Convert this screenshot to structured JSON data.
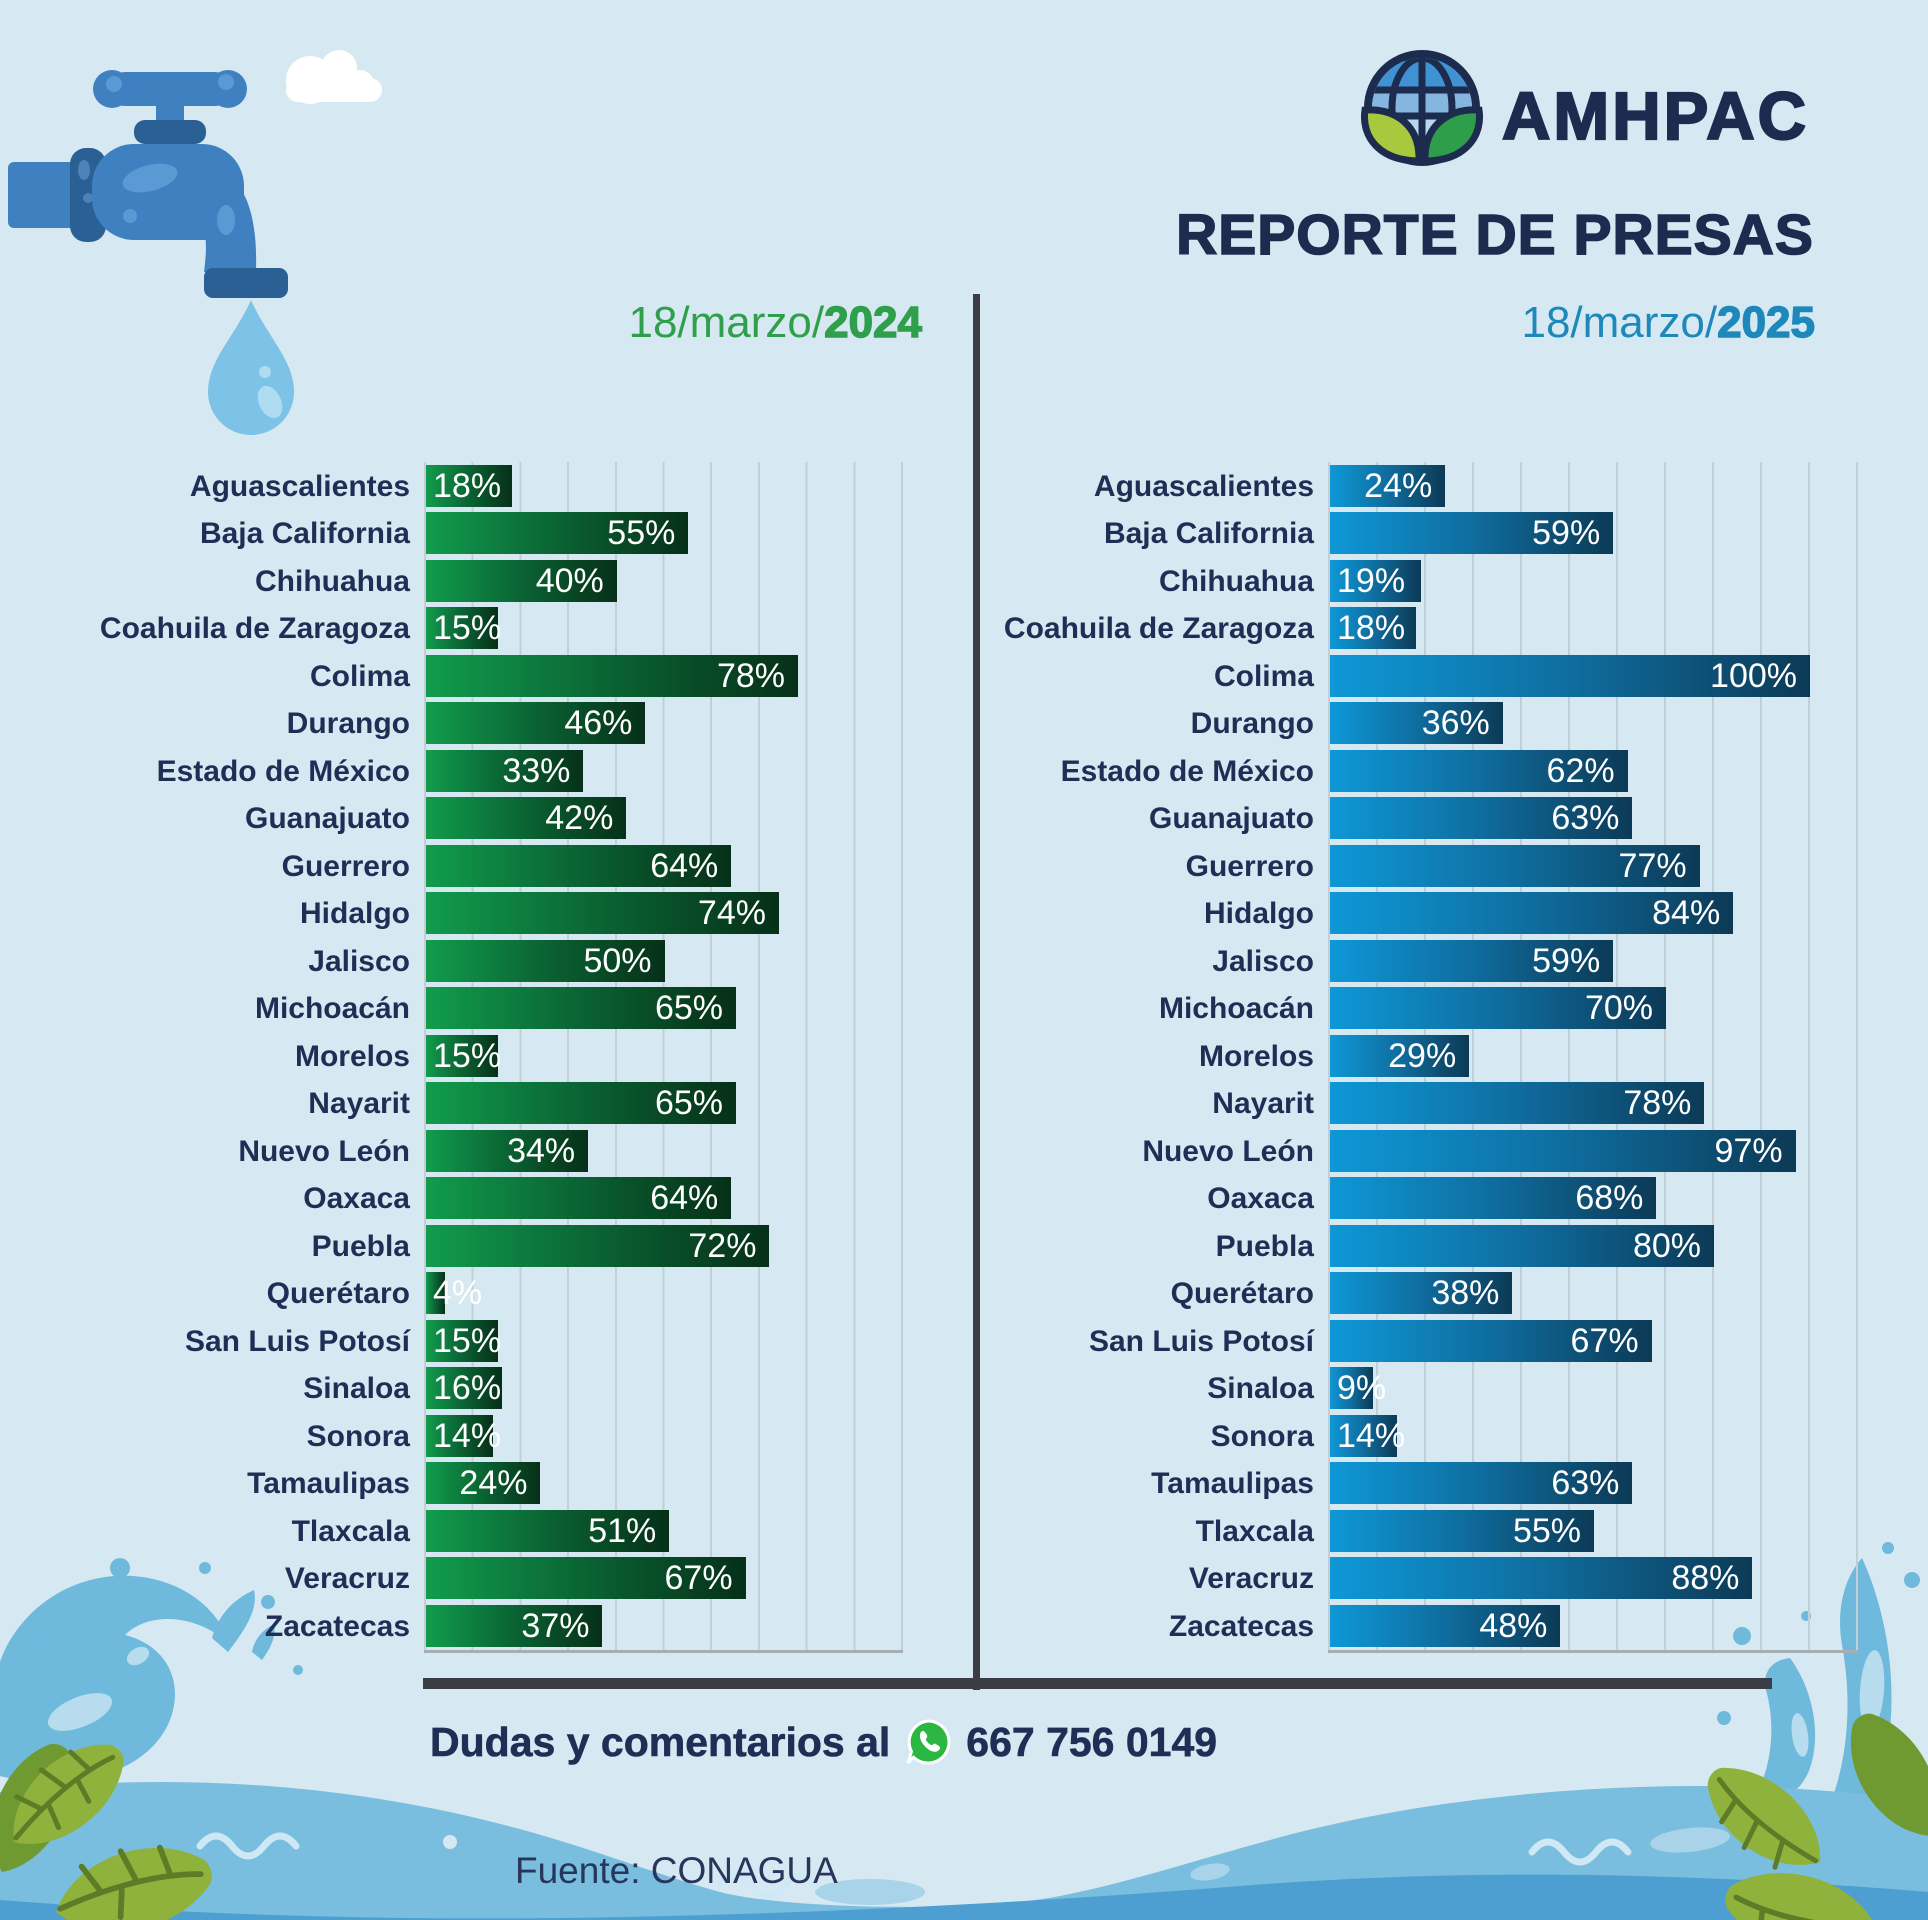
{
  "title": "REPORTE DE PRESAS",
  "logo": {
    "text": "AMHPAC"
  },
  "chart_data": {
    "type": "bar",
    "orientation": "horizontal",
    "title": "REPORTE DE PRESAS",
    "categories": [
      "Aguascalientes",
      "Baja California",
      "Chihuahua",
      "Coahuila de Zaragoza",
      "Colima",
      "Durango",
      "Estado de México",
      "Guanajuato",
      "Guerrero",
      "Hidalgo",
      "Jalisco",
      "Michoacán",
      "Morelos",
      "Nayarit",
      "Nuevo León",
      "Oaxaca",
      "Puebla",
      "Querétaro",
      "San Luis Potosí",
      "Sinaloa",
      "Sonora",
      "Tamaulipas",
      "Tlaxcala",
      "Veracruz",
      "Zacatecas"
    ],
    "series": [
      {
        "name": "18/marzo/2024",
        "date_prefix": "18/marzo/",
        "year": "2024",
        "values": [
          18,
          55,
          40,
          15,
          78,
          46,
          33,
          42,
          64,
          74,
          50,
          65,
          15,
          65,
          34,
          64,
          72,
          4,
          15,
          16,
          14,
          24,
          51,
          67,
          37
        ],
        "bar_gradient": [
          "#119c4d",
          "#0a6333",
          "#063018"
        ],
        "date_color": "#2f9f4b"
      },
      {
        "name": "18/marzo/2025",
        "date_prefix": "18/marzo/",
        "year": "2025",
        "values": [
          24,
          59,
          19,
          18,
          100,
          36,
          62,
          63,
          77,
          84,
          59,
          70,
          29,
          78,
          97,
          68,
          80,
          38,
          67,
          9,
          14,
          63,
          55,
          88,
          48
        ],
        "bar_gradient": [
          "#0e98d7",
          "#0f6d9f",
          "#0c3a56"
        ],
        "date_color": "#1f88ba"
      }
    ],
    "value_suffix": "%",
    "xlim": [
      0,
      110
    ],
    "gridline_step_pct": 10,
    "grid": true,
    "value_labels": "inside-end, white"
  },
  "footer": {
    "contact_label": "Dudas y comentarios al",
    "phone": "667 756 0149",
    "source": "Fuente: CONAGUA"
  },
  "colors": {
    "background": "#d6e9f2",
    "text_navy": "#1f2e55",
    "green_accent": "#2f9f4b",
    "blue_accent": "#1f88ba",
    "divider": "#3a3e44",
    "gridline": "#c3ced6",
    "whatsapp_green": "#2bb741",
    "wave_blue": "#79bede",
    "wave_dark_blue": "#4d9fd2",
    "leaf_olive": "#8fb23c"
  },
  "icons": {
    "faucet": "faucet-icon",
    "water_drop": "water-drop-icon",
    "cloud": "cloud-icon",
    "globe": "amhpac-globe-icon",
    "whatsapp": "whatsapp-icon",
    "waves": "wave-decoration",
    "leaves": "leaf-decoration",
    "splash": "water-splash-decoration"
  }
}
